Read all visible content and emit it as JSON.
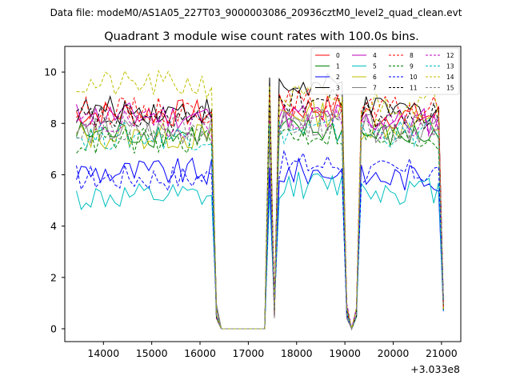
{
  "chart_data": {
    "type": "line",
    "suptitle": "Data file: modeM0/AS1A05_227T03_9000003086_20936cztM0_level2_quad_clean.evt",
    "title": "Quadrant 3 module wise count rates with 100.0s bins.",
    "xlabel": "",
    "ylabel": "",
    "x_offset_label": "+3.033e8",
    "xlim": [
      13200,
      21400
    ],
    "ylim": [
      -0.5,
      11.0
    ],
    "xticks": [
      14000,
      15000,
      16000,
      17000,
      18000,
      19000,
      20000,
      21000
    ],
    "xtick_labels": [
      "14000",
      "15000",
      "16000",
      "17000",
      "18000",
      "19000",
      "20000",
      "21000"
    ],
    "yticks": [
      0,
      2,
      4,
      6,
      8,
      10
    ],
    "ytick_labels": [
      "0",
      "2",
      "4",
      "6",
      "8",
      "10"
    ],
    "x_start": 13440,
    "x_step": 100,
    "gaps": [
      {
        "from": 16340,
        "to": 17440
      },
      {
        "from": 19040,
        "to": 19240
      }
    ],
    "legend_position": "top-right",
    "series": [
      {
        "name": "0",
        "color": "#ff0000",
        "dash": "solid",
        "base": [
          8.4,
          8.6,
          8.3
        ]
      },
      {
        "name": "1",
        "color": "#008000",
        "dash": "solid",
        "base": [
          7.6,
          7.7,
          7.5
        ]
      },
      {
        "name": "2",
        "color": "#0000ff",
        "dash": "solid",
        "base": [
          6.1,
          6.1,
          5.9
        ]
      },
      {
        "name": "3",
        "color": "#000000",
        "dash": "solid",
        "base": [
          8.5,
          9.4,
          8.5
        ]
      },
      {
        "name": "4",
        "color": "#bf00bf",
        "dash": "solid",
        "base": [
          8.3,
          8.3,
          8.1
        ]
      },
      {
        "name": "5",
        "color": "#00bfbf",
        "dash": "solid",
        "base": [
          5.1,
          5.6,
          5.4
        ]
      },
      {
        "name": "6",
        "color": "#bfbf00",
        "dash": "solid",
        "base": [
          7.5,
          8.4,
          7.9
        ]
      },
      {
        "name": "7",
        "color": "#808080",
        "dash": "solid",
        "base": [
          7.7,
          8.0,
          7.8
        ]
      },
      {
        "name": "8",
        "color": "#ff0000",
        "dash": "dashed",
        "base": [
          8.5,
          8.8,
          8.5
        ]
      },
      {
        "name": "9",
        "color": "#008000",
        "dash": "dashed",
        "base": [
          7.3,
          7.6,
          7.4
        ]
      },
      {
        "name": "10",
        "color": "#0000ff",
        "dash": "dashed",
        "base": [
          5.9,
          6.4,
          6.1
        ]
      },
      {
        "name": "11",
        "color": "#000000",
        "dash": "dashed",
        "base": [
          8.2,
          8.9,
          8.3
        ]
      },
      {
        "name": "12",
        "color": "#bf00bf",
        "dash": "dashed",
        "base": [
          8.0,
          8.1,
          7.9
        ]
      },
      {
        "name": "13",
        "color": "#00bfbf",
        "dash": "dashed",
        "base": [
          7.5,
          7.7,
          7.6
        ]
      },
      {
        "name": "14",
        "color": "#bfbf00",
        "dash": "dashed",
        "base": [
          9.5,
          9.0,
          8.8
        ]
      },
      {
        "name": "15",
        "color": "#808080",
        "dash": "dashed",
        "base": [
          7.9,
          8.0,
          7.8
        ]
      }
    ]
  }
}
